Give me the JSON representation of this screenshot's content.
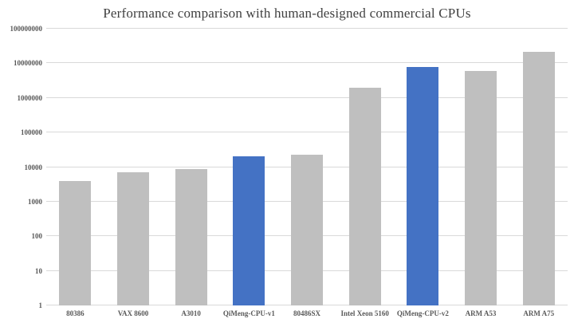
{
  "title": "Performance comparison with human-designed commercial CPUs",
  "chart_data": {
    "type": "bar",
    "title": "Performance comparison with human-designed commercial CPUs",
    "categories": [
      "80386",
      "VAX 8600",
      "A3010",
      "QiMeng-CPU-v1",
      "80486SX",
      "Intel Xeon 5160",
      "QiMeng-CPU-v2",
      "ARM A53",
      "ARM A75"
    ],
    "values": [
      4000,
      7000,
      9000,
      20000,
      23000,
      2000000,
      8000000,
      6000000,
      21000000
    ],
    "highlighted_categories": [
      "QiMeng-CPU-v1",
      "QiMeng-CPU-v2"
    ],
    "yscale": "log",
    "ylim": [
      1,
      100000000
    ],
    "yticks": [
      1,
      10,
      100,
      1000,
      10000,
      100000,
      1000000,
      10000000,
      100000000
    ],
    "ytick_labels": [
      "1",
      "10",
      "100",
      "1000",
      "10000",
      "100000",
      "1000000",
      "10000000",
      "100000000"
    ],
    "xlabel": "",
    "ylabel": "",
    "grid": true,
    "legend": false,
    "colors": {
      "bar_default": "#BFBFBF",
      "bar_highlight": "#4472C4",
      "gridline": "#D9D9D9",
      "axis_label": "#595959",
      "title": "#3F3F3F",
      "background": "#FFFFFF"
    }
  }
}
